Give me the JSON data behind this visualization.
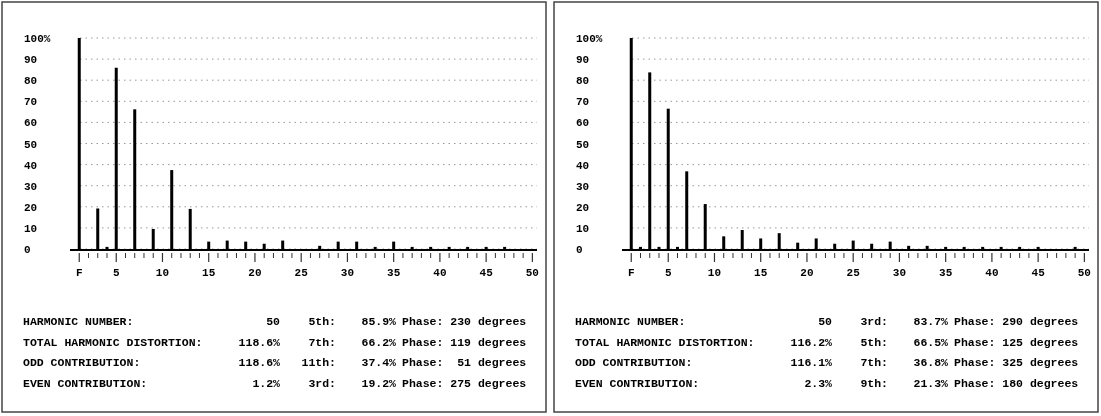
{
  "chart_data": [
    {
      "type": "bar",
      "color": "#000000",
      "grid": "y",
      "xlim": [
        0,
        50.5
      ],
      "ylim": [
        0,
        100
      ],
      "xticks": [
        {
          "value": 1,
          "label": "F"
        },
        {
          "value": 2,
          "label": null
        },
        {
          "value": 3,
          "label": null
        },
        {
          "value": 4,
          "label": null
        },
        5,
        {
          "value": 6,
          "label": null
        },
        {
          "value": 7,
          "label": null
        },
        {
          "value": 8,
          "label": null
        },
        {
          "value": 9,
          "label": null
        },
        10,
        {
          "value": 11,
          "label": null
        },
        {
          "value": 12,
          "label": null
        },
        {
          "value": 13,
          "label": null
        },
        {
          "value": 14,
          "label": null
        },
        15,
        {
          "value": 16,
          "label": null
        },
        {
          "value": 17,
          "label": null
        },
        {
          "value": 18,
          "label": null
        },
        {
          "value": 19,
          "label": null
        },
        20,
        {
          "value": 21,
          "label": null
        },
        {
          "value": 22,
          "label": null
        },
        {
          "value": 23,
          "label": null
        },
        {
          "value": 24,
          "label": null
        },
        25,
        {
          "value": 26,
          "label": null
        },
        {
          "value": 27,
          "label": null
        },
        {
          "value": 28,
          "label": null
        },
        {
          "value": 29,
          "label": null
        },
        30,
        {
          "value": 31,
          "label": null
        },
        {
          "value": 32,
          "label": null
        },
        {
          "value": 33,
          "label": null
        },
        {
          "value": 34,
          "label": null
        },
        35,
        {
          "value": 36,
          "label": null
        },
        {
          "value": 37,
          "label": null
        },
        {
          "value": 38,
          "label": null
        },
        {
          "value": 39,
          "label": null
        },
        40,
        {
          "value": 41,
          "label": null
        },
        {
          "value": 42,
          "label": null
        },
        {
          "value": 43,
          "label": null
        },
        {
          "value": 44,
          "label": null
        },
        45,
        {
          "value": 46,
          "label": null
        },
        {
          "value": 47,
          "label": null
        },
        {
          "value": 48,
          "label": null
        },
        {
          "value": 49,
          "label": null
        },
        50
      ],
      "yticks": [
        0,
        10,
        20,
        30,
        40,
        50,
        60,
        70,
        80,
        90,
        {
          "value": 100,
          "label": "100%"
        }
      ],
      "x": [
        1,
        3,
        4,
        5,
        7,
        9,
        11,
        13,
        15,
        17,
        19,
        21,
        23,
        27,
        29,
        31,
        33,
        35,
        37,
        39,
        41,
        43,
        45,
        47
      ],
      "values": [
        100,
        19.2,
        1,
        85.9,
        66.2,
        9.5,
        37.4,
        19,
        3.5,
        4,
        3.5,
        2.5,
        4,
        1.5,
        3.5,
        3.5,
        1,
        3.5,
        1,
        1,
        1,
        1,
        1,
        1
      ],
      "annotations": [
        "HARMONIC NUMBER:",
        "50",
        "5th:",
        "85.9%",
        "Phase: 230 degrees",
        "TOTAL HARMONIC DISTORTION:",
        "118.6%",
        "7th:",
        "66.2%",
        "Phase: 119 degrees",
        "ODD CONTRIBUTION:",
        "118.6%",
        "11th:",
        "37.4%",
        "Phase:  51 degrees",
        "EVEN CONTRIBUTION:",
        "1.2%",
        "3rd:",
        "19.2%",
        "Phase: 275 degrees"
      ]
    },
    {
      "type": "bar",
      "color": "#000000",
      "grid": "y",
      "xlim": [
        0,
        50.5
      ],
      "ylim": [
        0,
        100
      ],
      "xticks": [
        {
          "value": 1,
          "label": "F"
        },
        {
          "value": 2,
          "label": null
        },
        {
          "value": 3,
          "label": null
        },
        {
          "value": 4,
          "label": null
        },
        5,
        {
          "value": 6,
          "label": null
        },
        {
          "value": 7,
          "label": null
        },
        {
          "value": 8,
          "label": null
        },
        {
          "value": 9,
          "label": null
        },
        10,
        {
          "value": 11,
          "label": null
        },
        {
          "value": 12,
          "label": null
        },
        {
          "value": 13,
          "label": null
        },
        {
          "value": 14,
          "label": null
        },
        15,
        {
          "value": 16,
          "label": null
        },
        {
          "value": 17,
          "label": null
        },
        {
          "value": 18,
          "label": null
        },
        {
          "value": 19,
          "label": null
        },
        20,
        {
          "value": 21,
          "label": null
        },
        {
          "value": 22,
          "label": null
        },
        {
          "value": 23,
          "label": null
        },
        {
          "value": 24,
          "label": null
        },
        25,
        {
          "value": 26,
          "label": null
        },
        {
          "value": 27,
          "label": null
        },
        {
          "value": 28,
          "label": null
        },
        {
          "value": 29,
          "label": null
        },
        30,
        {
          "value": 31,
          "label": null
        },
        {
          "value": 32,
          "label": null
        },
        {
          "value": 33,
          "label": null
        },
        {
          "value": 34,
          "label": null
        },
        35,
        {
          "value": 36,
          "label": null
        },
        {
          "value": 37,
          "label": null
        },
        {
          "value": 38,
          "label": null
        },
        {
          "value": 39,
          "label": null
        },
        40,
        {
          "value": 41,
          "label": null
        },
        {
          "value": 42,
          "label": null
        },
        {
          "value": 43,
          "label": null
        },
        {
          "value": 44,
          "label": null
        },
        45,
        {
          "value": 46,
          "label": null
        },
        {
          "value": 47,
          "label": null
        },
        {
          "value": 48,
          "label": null
        },
        {
          "value": 49,
          "label": null
        },
        50
      ],
      "yticks": [
        0,
        10,
        20,
        30,
        40,
        50,
        60,
        70,
        80,
        90,
        {
          "value": 100,
          "label": "100%"
        }
      ],
      "x": [
        1,
        2,
        3,
        4,
        5,
        6,
        7,
        9,
        11,
        13,
        15,
        17,
        19,
        21,
        23,
        25,
        27,
        29,
        31,
        33,
        35,
        37,
        39,
        41,
        43,
        45,
        49
      ],
      "values": [
        100,
        1,
        83.7,
        1,
        66.5,
        1,
        36.8,
        21.3,
        6,
        9,
        5,
        7.5,
        3,
        5,
        2.5,
        4,
        2.5,
        3.5,
        1.5,
        1.5,
        1,
        1,
        1,
        1,
        1,
        1,
        1
      ],
      "annotations": [
        "HARMONIC NUMBER:",
        "50",
        "3rd:",
        "83.7%",
        "Phase: 290 degrees",
        "TOTAL HARMONIC DISTORTION:",
        "116.2%",
        "5th:",
        "66.5%",
        "Phase: 125 degrees",
        "ODD CONTRIBUTION:",
        "116.1%",
        "7th:",
        "36.8%",
        "Phase: 325 degrees",
        "EVEN CONTRIBUTION:",
        "2.3%",
        "9th:",
        "21.3%",
        "Phase: 180 degrees"
      ]
    }
  ]
}
